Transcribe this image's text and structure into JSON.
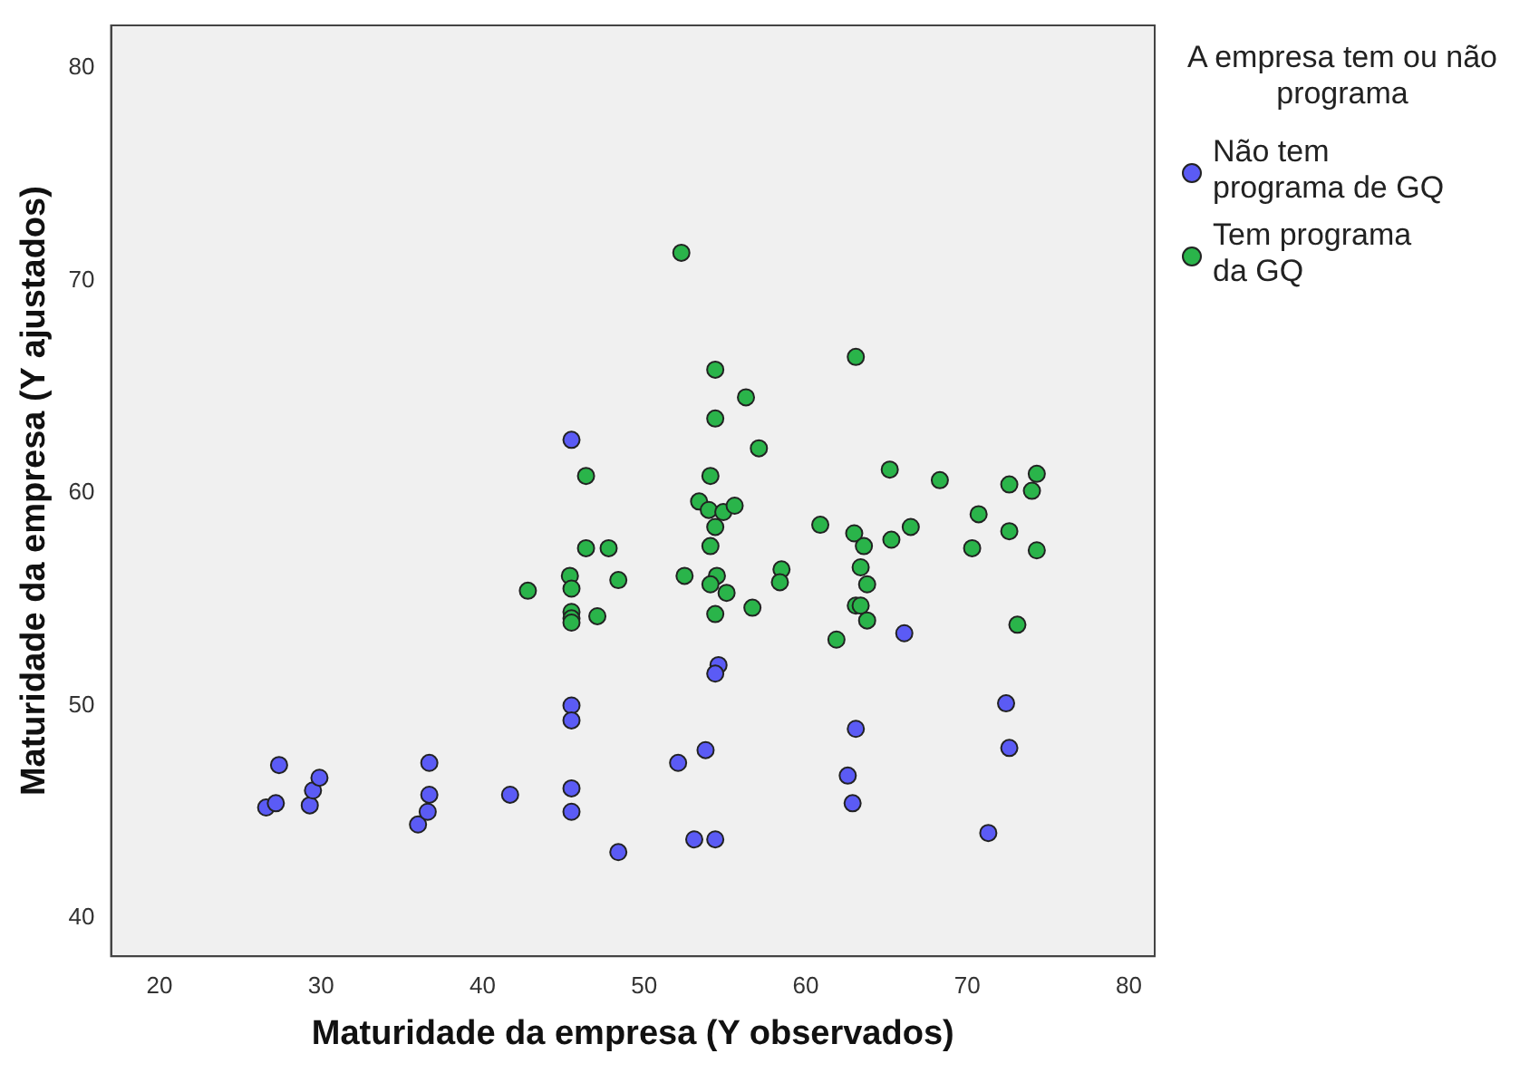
{
  "chart_data": {
    "type": "scatter",
    "xlabel": "Maturidade da empresa (Y observados)",
    "ylabel": "Maturidade da empresa (Y ajustados)",
    "legend_title": "A empresa tem ou não programa",
    "legend": "right",
    "grid": false,
    "marker": "circle",
    "xlim": [
      17,
      81.6
    ],
    "xticks": [
      20,
      30,
      40,
      50,
      60,
      70,
      80
    ],
    "ylim": [
      38.2,
      82
    ],
    "yticks": [
      40,
      50,
      60,
      70,
      80
    ],
    "series": [
      {
        "name": "Não tem programa de GQ",
        "color": "#5b5bf5",
        "x": [
          26.6,
          27.2,
          27.4,
          29.3,
          29.5,
          29.9,
          36.0,
          36.6,
          36.7,
          36.7,
          41.7,
          45.5,
          45.5,
          45.5,
          45.5,
          45.5,
          48.4,
          52.1,
          53.8,
          53.1,
          54.4,
          54.6,
          54.4,
          63.1,
          62.6,
          62.9,
          66.1,
          71.3,
          72.4,
          72.6
        ],
        "values": [
          45.2,
          45.4,
          47.2,
          45.3,
          46.0,
          46.6,
          44.4,
          45.0,
          45.8,
          47.3,
          45.8,
          62.5,
          50.0,
          49.3,
          46.1,
          45.0,
          43.1,
          47.3,
          47.9,
          43.7,
          43.7,
          51.9,
          51.5,
          48.9,
          46.7,
          45.4,
          53.4,
          44.0,
          50.1,
          48.0
        ]
      },
      {
        "name": "Tem programa da GQ",
        "color": "#2ab44a",
        "x": [
          52.3,
          63.1,
          54.4,
          56.3,
          54.4,
          57.1,
          46.4,
          65.2,
          68.3,
          72.6,
          74.3,
          74.0,
          54.1,
          53.4,
          54.0,
          54.9,
          55.6,
          54.4,
          60.9,
          70.7,
          72.6,
          63.0,
          63.6,
          65.3,
          66.5,
          70.3,
          74.3,
          54.1,
          46.4,
          47.8,
          45.4,
          45.5,
          48.4,
          42.8,
          45.5,
          45.5,
          45.5,
          47.1,
          52.5,
          54.5,
          54.1,
          55.1,
          54.4,
          56.7,
          58.5,
          58.4,
          63.4,
          63.8,
          63.1,
          63.4,
          63.8,
          61.9,
          73.1
        ],
        "values": [
          71.3,
          66.4,
          65.8,
          64.5,
          63.5,
          62.1,
          60.8,
          61.1,
          60.6,
          60.4,
          60.9,
          60.1,
          60.8,
          59.6,
          59.2,
          59.1,
          59.4,
          58.4,
          58.5,
          59.0,
          58.2,
          58.1,
          57.5,
          57.8,
          58.4,
          57.4,
          57.3,
          57.5,
          57.4,
          57.4,
          56.1,
          55.5,
          55.9,
          55.4,
          54.4,
          54.1,
          53.9,
          54.2,
          56.1,
          56.1,
          55.7,
          55.3,
          54.3,
          54.6,
          56.4,
          55.8,
          56.5,
          55.7,
          54.7,
          54.7,
          54.0,
          53.1,
          53.8
        ]
      }
    ]
  }
}
